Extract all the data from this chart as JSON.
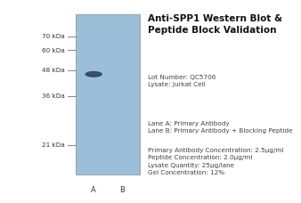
{
  "title": "Anti-SPP1 Western Blot &\nPeptide Block Validation",
  "title_fontsize": 7.5,
  "title_fontweight": "bold",
  "lot_number": "QC5706",
  "lysate": "Jurkat Cell",
  "lane_a_label": "Lane A: Primary Antibody",
  "lane_b_label": "Lane B: Primary Antibody + Blocking Peptide",
  "conc_line1": "Primary Antibody Concentration: 2.5µg/ml",
  "conc_line2": "Peptide Concentration: 2.0µg/ml",
  "conc_line3": "Lysate Quantity: 25µg/lane",
  "conc_line4": "Gel Concentration: 12%",
  "mw_labels": [
    "70 kDa",
    "60 kDa",
    "48 kDa",
    "36 kDa",
    "21 kDa"
  ],
  "mw_positions": [
    70,
    60,
    48,
    36,
    21
  ],
  "lane_labels": [
    "A",
    "B"
  ],
  "band_mw": 46,
  "gel_color": "#9bbfd9",
  "band_color": "#304060",
  "background_color": "#ffffff",
  "text_color": "#404040",
  "info_fontsize": 5.2,
  "lane_label_fontsize": 6.0,
  "mw_fontsize": 5.2,
  "mw_log_min_factor": 0.72,
  "mw_log_max_factor": 1.28
}
